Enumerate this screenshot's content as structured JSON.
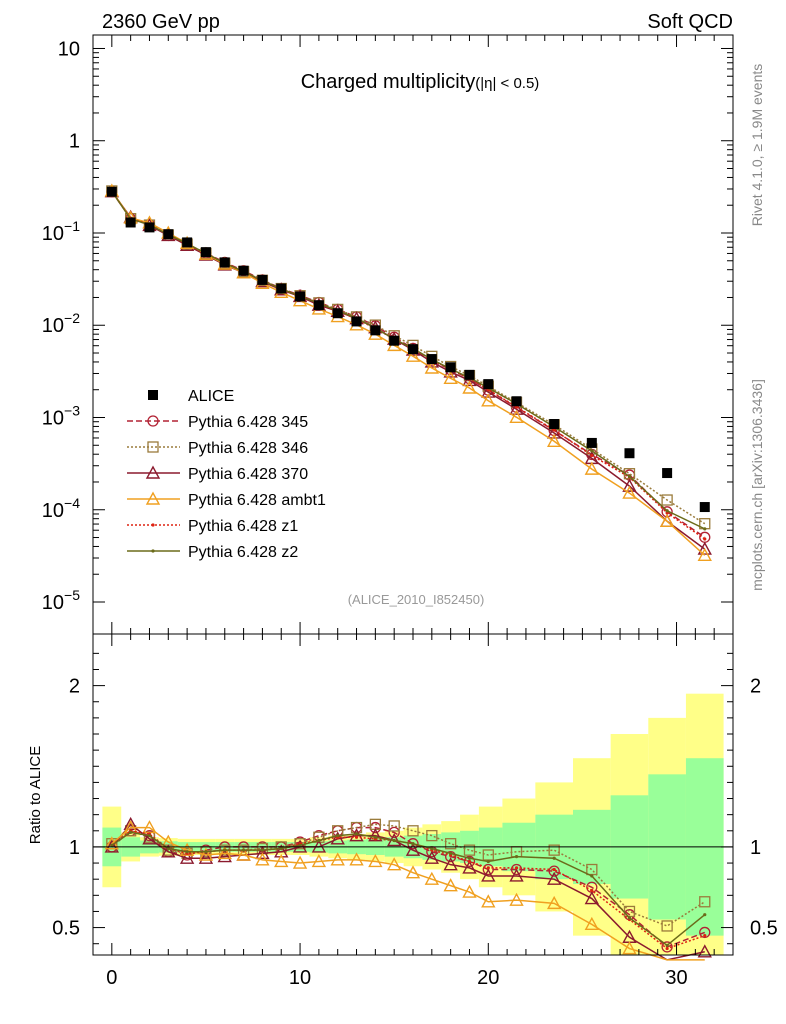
{
  "header": {
    "left_label": "2360 GeV pp",
    "right_label": "Soft QCD"
  },
  "side_labels": {
    "rivet": "Rivet 4.1.0, ≥ 1.9M events",
    "mcplots": "mcplots.cern.ch [arXiv:1306.3436]"
  },
  "chart_data": {
    "type": "line",
    "title": "Charged multiplicity",
    "title_suffix": "(|η| < 0.5)",
    "analysis_id": "(ALICE_2010_I852450)",
    "xlim": [
      -1,
      33
    ],
    "ylim_main": [
      4.5e-06,
      14
    ],
    "ylim_ratio": [
      0.33,
      2.32
    ],
    "ylabel_ratio": "Ratio to ALICE",
    "x_ticks": [
      "0",
      "10",
      "20",
      "30"
    ],
    "main_y_ticks": [
      {
        "value": 10,
        "base": "10",
        "exp": ""
      },
      {
        "value": 1,
        "base": "1",
        "exp": ""
      },
      {
        "value": 0.1,
        "base": "10",
        "exp": "−1"
      },
      {
        "value": 0.01,
        "base": "10",
        "exp": "−2"
      },
      {
        "value": 0.001,
        "base": "10",
        "exp": "−3"
      },
      {
        "value": 0.0001,
        "base": "10",
        "exp": "−4"
      },
      {
        "value": 1e-05,
        "base": "10",
        "exp": "−5"
      }
    ],
    "ratio_y_ticks": [
      "0.5",
      "1",
      "2"
    ],
    "x": [
      0,
      1,
      2,
      3,
      4,
      5,
      6,
      7,
      8,
      9,
      10,
      11,
      12,
      13,
      14,
      15,
      16,
      17,
      18,
      19,
      20,
      21.5,
      23.5,
      25.5,
      27.5,
      29.5,
      31.5
    ],
    "series": [
      {
        "name": "ALICE",
        "style": "data",
        "color": "#000000",
        "values": [
          0.28,
          0.13,
          0.115,
          0.097,
          0.079,
          0.062,
          0.048,
          0.039,
          0.031,
          0.025,
          0.0205,
          0.0165,
          0.0135,
          0.011,
          0.0088,
          0.0068,
          0.0055,
          0.0043,
          0.0035,
          0.0029,
          0.0023,
          0.0015,
          0.00085,
          0.00053,
          0.00041,
          0.00025,
          0.000107
        ]
      },
      {
        "name": "Pythia 6.428 345",
        "style": "circle-dashed",
        "color": "#b22234",
        "ratio": [
          1.0,
          1.1,
          1.07,
          0.97,
          0.95,
          0.98,
          1.0,
          1.0,
          1.0,
          1.0,
          1.03,
          1.07,
          1.1,
          1.12,
          1.12,
          1.09,
          1.02,
          0.97,
          0.94,
          0.91,
          0.86,
          0.86,
          0.85,
          0.75,
          0.58,
          0.38,
          0.47
        ]
      },
      {
        "name": "Pythia 6.428 346",
        "style": "square-dotted",
        "color": "#9a7b3b",
        "ratio": [
          1.02,
          1.1,
          1.06,
          0.98,
          0.96,
          0.97,
          0.98,
          0.98,
          0.99,
          1.0,
          1.02,
          1.06,
          1.1,
          1.12,
          1.14,
          1.13,
          1.1,
          1.07,
          1.02,
          0.98,
          0.95,
          0.97,
          0.98,
          0.86,
          0.6,
          0.51,
          0.66
        ]
      },
      {
        "name": "Pythia 6.428 370",
        "style": "triangle-solid",
        "color": "#8b1a2e",
        "ratio": [
          1.0,
          1.14,
          1.05,
          0.97,
          0.93,
          0.93,
          0.94,
          0.95,
          0.96,
          0.97,
          1.0,
          1.0,
          1.05,
          1.07,
          1.07,
          1.04,
          0.98,
          0.93,
          0.89,
          0.87,
          0.82,
          0.82,
          0.8,
          0.68,
          0.44,
          0.3,
          0.35
        ]
      },
      {
        "name": "Pythia 6.428 ambt1",
        "style": "triangle-solid",
        "color": "#f0a020",
        "ratio": [
          1.02,
          1.12,
          1.12,
          1.03,
          0.98,
          0.95,
          0.96,
          0.95,
          0.92,
          0.91,
          0.9,
          0.91,
          0.92,
          0.92,
          0.91,
          0.89,
          0.84,
          0.8,
          0.76,
          0.72,
          0.66,
          0.67,
          0.65,
          0.52,
          0.37,
          0.3,
          0.3
        ]
      },
      {
        "name": "Pythia 6.428 z1",
        "style": "dot-dotted",
        "color": "#dd2211",
        "ratio": [
          1.01,
          1.1,
          1.08,
          0.99,
          0.96,
          0.97,
          0.98,
          0.98,
          0.98,
          0.99,
          1.02,
          1.04,
          1.06,
          1.06,
          1.05,
          1.04,
          1.02,
          0.98,
          0.95,
          0.91,
          0.87,
          0.87,
          0.86,
          0.73,
          0.55,
          0.37,
          0.45
        ]
      },
      {
        "name": "Pythia 6.428 z2",
        "style": "dot-solid",
        "color": "#6b6b1a",
        "ratio": [
          1.01,
          1.09,
          1.07,
          0.99,
          0.97,
          0.97,
          0.98,
          0.98,
          0.98,
          0.99,
          1.01,
          1.04,
          1.07,
          1.08,
          1.06,
          1.04,
          1.02,
          0.99,
          0.96,
          0.93,
          0.91,
          0.94,
          0.93,
          0.82,
          0.56,
          0.39,
          0.58
        ]
      }
    ],
    "uncertainty_bands": {
      "inner": [
        0.12,
        0.06,
        0.04,
        0.035,
        0.03,
        0.03,
        0.03,
        0.03,
        0.03,
        0.03,
        0.03,
        0.035,
        0.04,
        0.045,
        0.05,
        0.06,
        0.07,
        0.08,
        0.09,
        0.1,
        0.12,
        0.15,
        0.2,
        0.23,
        0.32,
        0.45,
        0.55
      ],
      "outer": [
        0.25,
        0.09,
        0.06,
        0.055,
        0.05,
        0.05,
        0.05,
        0.05,
        0.05,
        0.05,
        0.05,
        0.06,
        0.07,
        0.08,
        0.09,
        0.1,
        0.12,
        0.14,
        0.16,
        0.2,
        0.25,
        0.3,
        0.4,
        0.55,
        0.7,
        0.8,
        0.95
      ],
      "inner_color": "#99ff99",
      "outer_color": "#ffff88"
    }
  }
}
